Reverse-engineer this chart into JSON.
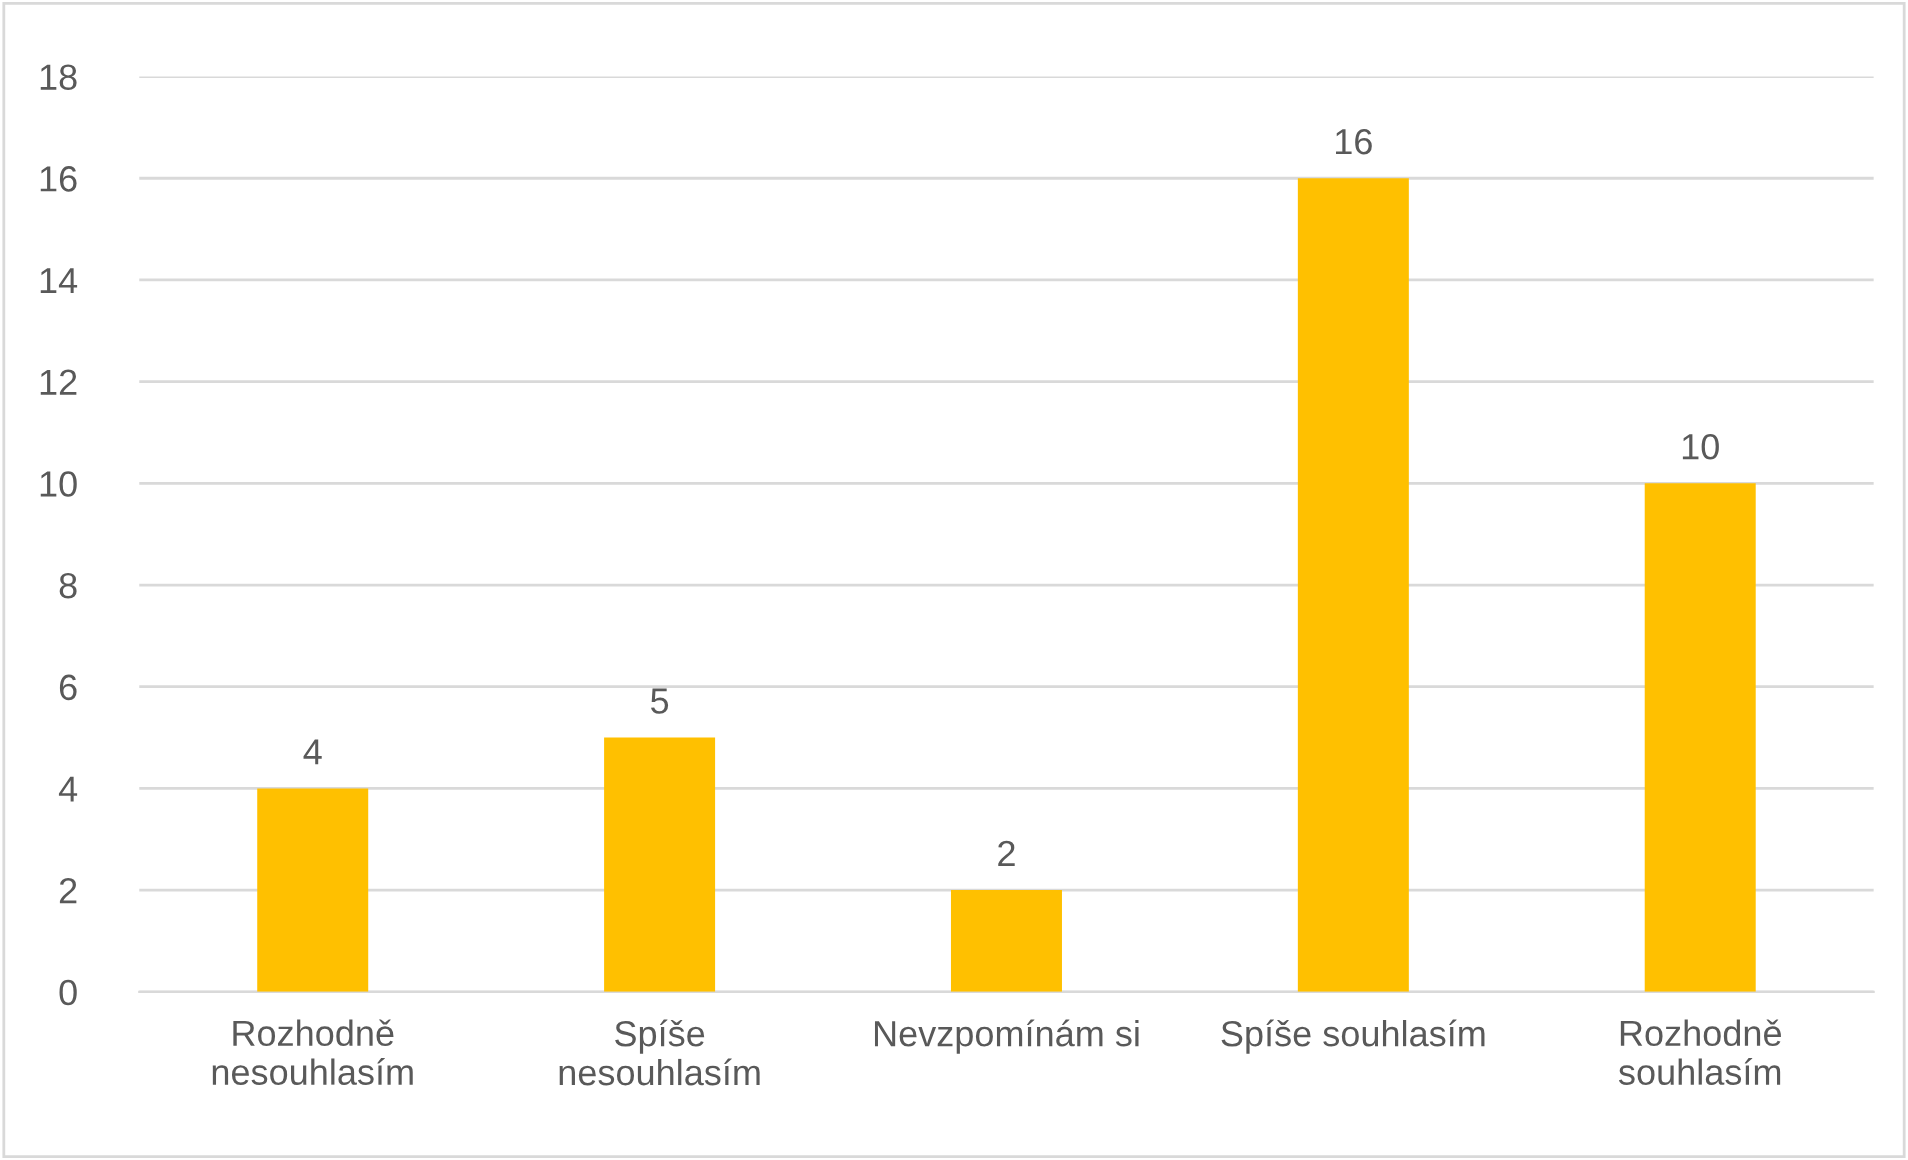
{
  "chart_data": {
    "type": "bar",
    "categories": [
      "Rozhodně\nnesouhlasím",
      "Spíše\nnesouhlasím",
      "Nevzpomínám si",
      "Spíše souhlasím",
      "Rozhodně\nsouhlasím"
    ],
    "values": [
      4,
      5,
      2,
      16,
      10
    ],
    "color": "#ffc000",
    "ylim": [
      0,
      18
    ],
    "yticks": [
      0,
      2,
      4,
      6,
      8,
      10,
      12,
      14,
      16,
      18
    ],
    "grid": "y",
    "data_labels": true,
    "legend": false
  }
}
